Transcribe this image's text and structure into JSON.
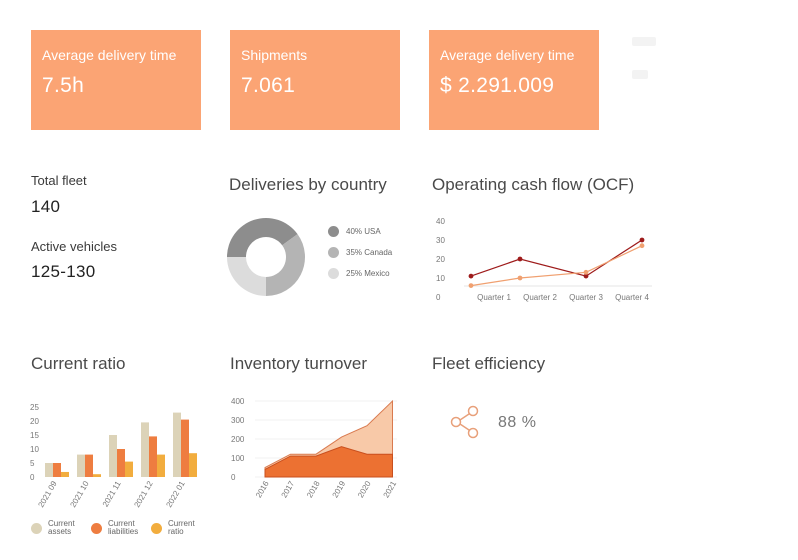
{
  "kpis": [
    {
      "label": "Average delivery time",
      "value": "7.5h"
    },
    {
      "label": "Shipments",
      "value": "7.061"
    },
    {
      "label": "Average delivery time",
      "value": "$ 2.291.009"
    }
  ],
  "fleet": {
    "total_label": "Total fleet",
    "total_value": "140",
    "active_label": "Active vehicles",
    "active_value": "125-130"
  },
  "deliveries": {
    "title": "Deliveries by country",
    "chart_data": {
      "type": "pie",
      "slices": [
        {
          "label": "40% USA",
          "value": 40,
          "color": "#8d8d8d"
        },
        {
          "label": "35% Canada",
          "value": 35,
          "color": "#b4b4b4"
        },
        {
          "label": "25% Mexico",
          "value": 25,
          "color": "#dcdcdc"
        }
      ]
    }
  },
  "ocf": {
    "title": "Operating cash flow (OCF)",
    "chart_data": {
      "type": "line",
      "categories": [
        "Quarter 1",
        "Quarter 2",
        "Quarter 3",
        "Quarter 4"
      ],
      "yticks": [
        "0",
        "10",
        "20",
        "30",
        "40"
      ],
      "ylim": [
        0,
        40
      ],
      "series": [
        {
          "values": [
            11,
            20,
            11,
            30
          ],
          "color": "#9e1b1b"
        },
        {
          "values": [
            6,
            10,
            13,
            27
          ],
          "color": "#f0a070"
        }
      ]
    }
  },
  "current_ratio": {
    "title": "Current ratio",
    "chart_data": {
      "type": "bar",
      "categories": [
        "2021 09",
        "2021 10",
        "2021 11",
        "2021 12",
        "2022 01"
      ],
      "yticks": [
        "0",
        "5",
        "10",
        "15",
        "20",
        "25"
      ],
      "ylim": [
        0,
        25
      ],
      "series": [
        {
          "name": "Current assets",
          "values": [
            5,
            8,
            15,
            19.5,
            23
          ],
          "color": "#dcd3b8"
        },
        {
          "name": "Current liabilities",
          "values": [
            5,
            8,
            10,
            14.5,
            20.5
          ],
          "color": "#ee7d40"
        },
        {
          "name": "Current ratio",
          "values": [
            1.8,
            1,
            5.5,
            8,
            8.5
          ],
          "color": "#f2ad3e"
        }
      ]
    },
    "legend": [
      {
        "line1": "Current",
        "line2": "assets",
        "color": "#dcd3b8"
      },
      {
        "line1": "Current",
        "line2": "liabilities",
        "color": "#ee7d40"
      },
      {
        "line1": "Current",
        "line2": "ratio",
        "color": "#f2ad3e"
      }
    ]
  },
  "inventory": {
    "title": "Inventory turnover",
    "chart_data": {
      "type": "area",
      "categories": [
        "2016",
        "2017",
        "2018",
        "2019",
        "2020",
        "2021"
      ],
      "yticks": [
        "0",
        "100",
        "200",
        "300",
        "400"
      ],
      "ylim": [
        0,
        400
      ],
      "series": [
        {
          "values": [
            50,
            120,
            120,
            210,
            270,
            400
          ],
          "color": "#f8c9a8"
        },
        {
          "values": [
            40,
            110,
            110,
            160,
            120,
            120
          ],
          "color": "#ec7132"
        }
      ]
    }
  },
  "fleet_eff": {
    "title": "Fleet efficiency",
    "value": "88 %",
    "icon": "share-icon",
    "icon_color": "#e8a07a"
  }
}
